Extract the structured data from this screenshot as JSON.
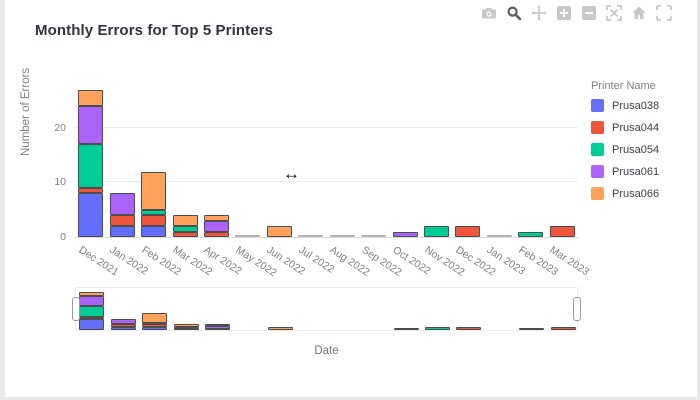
{
  "toolbar": {
    "icons": [
      "camera",
      "zoom",
      "pan",
      "zoom-in",
      "zoom-out",
      "autoscale",
      "reset-axes-home",
      "fullscreen"
    ],
    "active_icon": "zoom",
    "inactive_color": "#c8c8c8",
    "active_color": "#5e5e5e"
  },
  "cursor": {
    "glyph": "↔"
  },
  "chart_data": {
    "type": "bar",
    "stacked": true,
    "title": "Monthly Errors for Top 5 Printers",
    "xlabel": "Date",
    "ylabel": "Number of Errors",
    "legend_title": "Printer Name",
    "legend_position": "right",
    "grid": true,
    "ylim": [
      0,
      29.7
    ],
    "yticks": [
      0,
      10,
      20
    ],
    "xtick_angle": 33,
    "categories": [
      "Dec 2021",
      "Jan 2022",
      "Feb 2022",
      "Mar 2022",
      "Apr 2022",
      "May 2022",
      "Jun 2022",
      "Jul 2022",
      "Aug 2022",
      "Sep 2022",
      "Oct 2022",
      "Nov 2022",
      "Dec 2022",
      "Jan 2023",
      "Feb 2023",
      "Mar 2023"
    ],
    "series": [
      {
        "name": "Prusa038",
        "color": "#636EFA",
        "values": [
          8,
          2,
          2,
          0,
          0,
          0,
          0,
          0,
          0,
          0,
          0,
          0,
          0,
          0,
          0,
          0
        ]
      },
      {
        "name": "Prusa044",
        "color": "#EF553B",
        "values": [
          1,
          2,
          2,
          1,
          1,
          0,
          0,
          0,
          0,
          0,
          0,
          0,
          2,
          0,
          0,
          2
        ]
      },
      {
        "name": "Prusa054",
        "color": "#00CC96",
        "values": [
          8,
          0,
          1,
          1,
          0,
          0,
          0,
          0,
          0,
          0,
          0,
          2,
          0,
          0,
          1,
          0
        ]
      },
      {
        "name": "Prusa061",
        "color": "#AB63FA",
        "values": [
          7,
          4,
          0,
          0,
          2,
          0,
          0,
          0,
          0,
          0,
          1,
          0,
          0,
          0,
          0,
          0
        ]
      },
      {
        "name": "Prusa066",
        "color": "#FFA15A",
        "values": [
          3,
          0,
          7,
          2,
          1,
          0,
          2,
          0,
          0,
          0,
          0,
          0,
          0,
          0,
          0,
          0
        ]
      }
    ],
    "rangeslider": true
  }
}
